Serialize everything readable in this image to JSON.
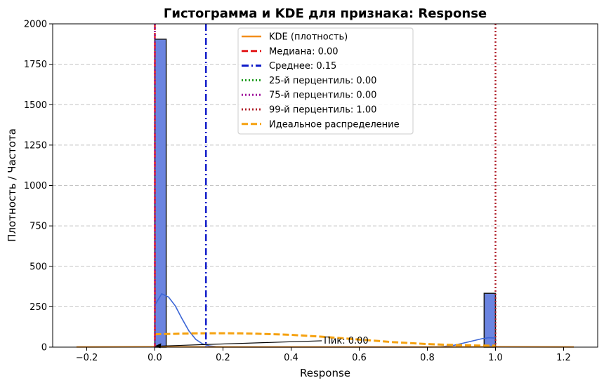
{
  "chart_data": {
    "type": "bar",
    "title": "Гистограмма и KDE для признака: Response",
    "xlabel": "Response",
    "ylabel": "Плотность / Частота",
    "xlim": [
      -0.3,
      1.3
    ],
    "ylim": [
      0,
      2000
    ],
    "xticks": [
      -0.2,
      0.0,
      0.2,
      0.4,
      0.6,
      0.8,
      1.0,
      1.2
    ],
    "xtick_labels": [
      "−0.2",
      "0.0",
      "0.2",
      "0.4",
      "0.6",
      "0.8",
      "1.0",
      "1.2"
    ],
    "yticks": [
      0,
      250,
      500,
      750,
      1000,
      1250,
      1500,
      1750,
      2000
    ],
    "ytick_labels": [
      "0",
      "250",
      "500",
      "750",
      "1000",
      "1250",
      "1500",
      "1750",
      "2000"
    ],
    "grid": "y-dashed",
    "legend_position": "top-center",
    "histogram": {
      "color": "#6b84e0",
      "edge_color": "#1a1a1a",
      "bins": [
        {
          "x0": 0.0,
          "x1": 0.0333,
          "value": 1905
        },
        {
          "x0": 0.9667,
          "x1": 1.0,
          "value": 333
        }
      ]
    },
    "kde_hist_curve": {
      "color": "#3c66d6",
      "points": [
        [
          0.0,
          260
        ],
        [
          0.02,
          330
        ],
        [
          0.04,
          310
        ],
        [
          0.06,
          255
        ],
        [
          0.08,
          175
        ],
        [
          0.1,
          100
        ],
        [
          0.12,
          48
        ],
        [
          0.14,
          20
        ],
        [
          0.16,
          8
        ],
        [
          0.18,
          3
        ],
        [
          0.2,
          1
        ],
        [
          0.3,
          0
        ],
        [
          0.7,
          0
        ],
        [
          0.8,
          0
        ],
        [
          0.84,
          2
        ],
        [
          0.88,
          12
        ],
        [
          0.92,
          32
        ],
        [
          0.96,
          52
        ],
        [
          0.98,
          58
        ],
        [
          1.0,
          56
        ]
      ]
    },
    "series": [
      {
        "name": "KDE (плотность)",
        "style": "solid",
        "color": "#f28e1b",
        "points": [
          [
            -0.23,
            1
          ],
          [
            0.0,
            2
          ],
          [
            0.2,
            1.5
          ],
          [
            0.5,
            1
          ],
          [
            0.8,
            1
          ],
          [
            1.0,
            2
          ],
          [
            1.23,
            1
          ]
        ]
      },
      {
        "name": "Медиана: 0.00",
        "style": "vline-dashed",
        "color": "#e31a1c",
        "x": 0.0
      },
      {
        "name": "Среднее: 0.15",
        "style": "vline-dashdot",
        "color": "#0c18c8",
        "x": 0.15
      },
      {
        "name": "25-й перцентиль: 0.00",
        "style": "vline-dotted",
        "color": "#1a9a1a",
        "x": 0.0
      },
      {
        "name": "75-й перцентиль: 0.00",
        "style": "vline-dotted",
        "color": "#a0119c",
        "x": 0.0
      },
      {
        "name": "99-й перцентиль: 1.00",
        "style": "vline-dotted",
        "color": "#b0202a",
        "x": 1.0
      },
      {
        "name": "Идеальное распределение",
        "style": "dashed",
        "color": "#f5a10f",
        "points": [
          [
            0.0,
            80
          ],
          [
            0.05,
            82
          ],
          [
            0.1,
            84
          ],
          [
            0.15,
            86
          ],
          [
            0.2,
            86
          ],
          [
            0.25,
            85
          ],
          [
            0.3,
            83
          ],
          [
            0.35,
            80
          ],
          [
            0.4,
            76
          ],
          [
            0.45,
            70
          ],
          [
            0.5,
            63
          ],
          [
            0.55,
            55
          ],
          [
            0.6,
            47
          ],
          [
            0.65,
            39
          ],
          [
            0.7,
            31
          ],
          [
            0.75,
            25
          ],
          [
            0.8,
            19
          ],
          [
            0.85,
            15
          ],
          [
            0.9,
            12
          ],
          [
            0.95,
            10
          ],
          [
            1.0,
            9
          ]
        ]
      }
    ],
    "annotation": {
      "text": "Пик: 0.00",
      "point": [
        0.0,
        2
      ],
      "text_pos": [
        0.49,
        22
      ]
    }
  }
}
